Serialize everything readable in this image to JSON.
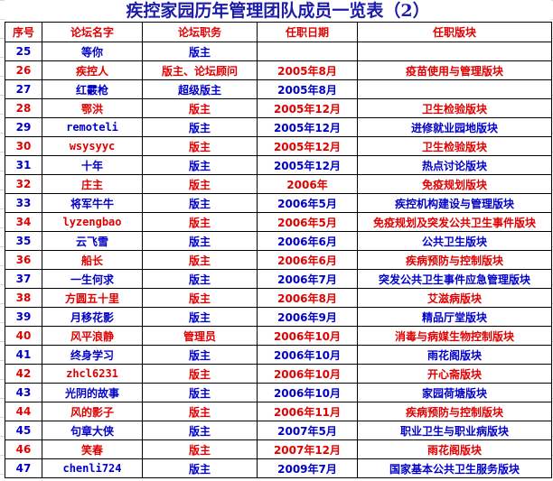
{
  "title": "疾控家园历年管理团队成员一览表（2）",
  "colors": {
    "title": "#1c1ca8",
    "red": "#e00000",
    "blue": "#0000c8"
  },
  "headers": [
    "序号",
    "论坛名字",
    "论坛职务",
    "任职日期",
    "任职版块"
  ],
  "rows": [
    {
      "no": "25",
      "name": "等你",
      "role": "版主",
      "date": "",
      "board": "",
      "color": "blue"
    },
    {
      "no": "26",
      "name": "疾控人",
      "role": "版主、论坛顾问",
      "date": "2005年8月",
      "board": "疫苗使用与管理版块",
      "color": "red"
    },
    {
      "no": "27",
      "name": "红霰枪",
      "role": "超级版主",
      "date": "2005年8月",
      "board": "",
      "color": "blue"
    },
    {
      "no": "28",
      "name": "鄂洪",
      "role": "版主",
      "date": "2005年12月",
      "board": "卫生检验版块",
      "color": "red"
    },
    {
      "no": "29",
      "name": "remoteli",
      "role": "版主",
      "date": "2005年12月",
      "board": "进修就业园地版块",
      "color": "blue"
    },
    {
      "no": "30",
      "name": "wsysyyc",
      "role": "版主",
      "date": "2005年12月",
      "board": "卫生检验版块",
      "color": "red"
    },
    {
      "no": "31",
      "name": "十年",
      "role": "版主",
      "date": "2005年12月",
      "board": "热点讨论版块",
      "color": "blue"
    },
    {
      "no": "32",
      "name": "庄主",
      "role": "版主",
      "date": "2006年",
      "board": "免疫规划版块",
      "color": "red"
    },
    {
      "no": "33",
      "name": "将军牛牛",
      "role": "版主",
      "date": "2006年5月",
      "board": "疾控机构建设与管理版块",
      "color": "blue"
    },
    {
      "no": "34",
      "name": "lyzengbao",
      "role": "版主",
      "date": "2006年5月",
      "board": "免疫规划及突发公共卫生事件版块",
      "color": "red"
    },
    {
      "no": "35",
      "name": "云飞雪",
      "role": "版主",
      "date": "2006年6月",
      "board": "公共卫生版块",
      "color": "blue"
    },
    {
      "no": "36",
      "name": "船长",
      "role": "版主",
      "date": "2006年6月",
      "board": "疾病预防与控制版块",
      "color": "red"
    },
    {
      "no": "37",
      "name": "一生何求",
      "role": "版主",
      "date": "2006年7月",
      "board": "突发公共卫生事件应急管理版块",
      "color": "blue"
    },
    {
      "no": "38",
      "name": "方圆五十里",
      "role": "版主",
      "date": "2006年8月",
      "board": "艾滋病版块",
      "color": "red"
    },
    {
      "no": "39",
      "name": "月移花影",
      "role": "版主",
      "date": "2006年9月",
      "board": "精品厅堂版块",
      "color": "blue"
    },
    {
      "no": "40",
      "name": "风平浪静",
      "role": "管理员",
      "date": "2006年10月",
      "board": "消毒与病媒生物控制版块",
      "color": "red"
    },
    {
      "no": "41",
      "name": "终身学习",
      "role": "版主",
      "date": "2006年10月",
      "board": "雨花阁版块",
      "color": "blue"
    },
    {
      "no": "42",
      "name": "zhcl6231",
      "role": "版主",
      "date": "2006年10月",
      "board": "开心斋版块",
      "color": "red"
    },
    {
      "no": "43",
      "name": "光阴的故事",
      "role": "版主",
      "date": "2006年10月",
      "board": "家园荷塘版块",
      "color": "blue"
    },
    {
      "no": "44",
      "name": "风的影子",
      "role": "版主",
      "date": "2006年11月",
      "board": "疾病预防与控制版块",
      "color": "red"
    },
    {
      "no": "45",
      "name": "句章大侠",
      "role": "版主",
      "date": "2007年5月",
      "board": "职业卫生与职业病版块",
      "color": "blue"
    },
    {
      "no": "46",
      "name": "笑春",
      "role": "版主",
      "date": "2007年12月",
      "board": "雨花阁版块",
      "color": "red"
    },
    {
      "no": "47",
      "name": "chenli724",
      "role": "版主",
      "date": "2009年7月",
      "board": "国家基本公共卫生服务版块",
      "color": "blue"
    }
  ]
}
